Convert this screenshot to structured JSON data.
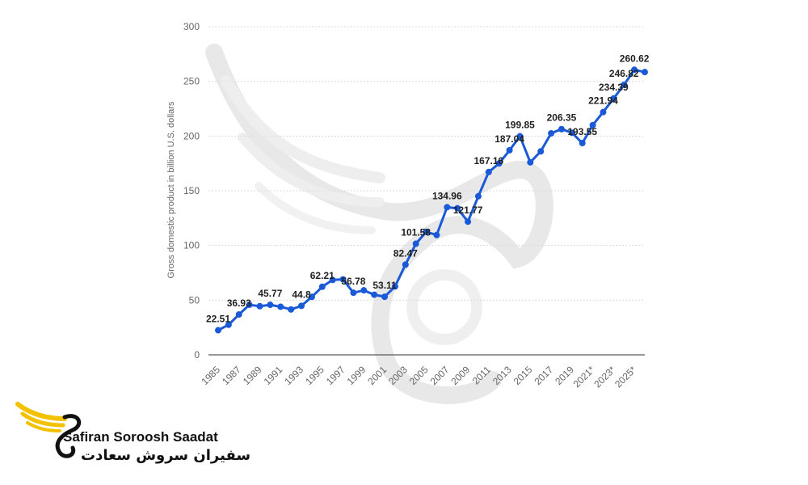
{
  "chart_data": {
    "type": "line",
    "ylabel": "Gross domestic product in billion U.S. dollars",
    "xlabel": "",
    "ylim": [
      0,
      300
    ],
    "yticks": [
      0,
      50,
      100,
      150,
      200,
      250,
      300
    ],
    "grid": true,
    "color": "#1a5ad8",
    "x_ticks": [
      "1985",
      "1987",
      "1989",
      "1991",
      "1993",
      "1995",
      "1997",
      "1999",
      "2001",
      "2003",
      "2005",
      "2007",
      "2009",
      "2011",
      "2013",
      "2015",
      "2017",
      "2019",
      "2021*",
      "2023*",
      "2025*"
    ],
    "x": [
      "1985",
      "1986",
      "1987",
      "1988",
      "1989",
      "1990",
      "1991",
      "1992",
      "1993",
      "1994",
      "1995",
      "1996",
      "1997",
      "1998",
      "1999",
      "2000",
      "2001",
      "2002",
      "2003",
      "2004",
      "2005",
      "2006",
      "2007",
      "2008",
      "2009",
      "2010",
      "2011",
      "2012",
      "2013",
      "2014",
      "2015",
      "2016",
      "2017",
      "2018",
      "2019",
      "2020",
      "2021*",
      "2022*",
      "2023*",
      "2024*",
      "2025*",
      "2026*"
    ],
    "series": [
      {
        "values": [
          22.51,
          27.5,
          36.93,
          45.77,
          44.5,
          45.77,
          44.0,
          41.5,
          44.8,
          53.0,
          62.21,
          68.5,
          69.0,
          56.78,
          59.0,
          55.0,
          53.11,
          62.5,
          82.47,
          101.58,
          112.5,
          109.5,
          134.96,
          134.0,
          121.77,
          145.0,
          167.16,
          175.0,
          187.04,
          199.85,
          176.0,
          186.0,
          202.5,
          206.35,
          203.0,
          193.55,
          210.0,
          221.94,
          234.39,
          246.82,
          260.62,
          258.5
        ]
      }
    ],
    "data_labels": [
      {
        "x": "1985",
        "text": "22.51"
      },
      {
        "x": "1987",
        "text": "36.93"
      },
      {
        "x": "1990",
        "text": "45.77"
      },
      {
        "x": "1993",
        "text": "44.8"
      },
      {
        "x": "1995",
        "text": "62.21"
      },
      {
        "x": "1998",
        "text": "56.78"
      },
      {
        "x": "2001",
        "text": "53.11"
      },
      {
        "x": "2003",
        "text": "82.47"
      },
      {
        "x": "2004",
        "text": "101.58"
      },
      {
        "x": "2007",
        "text": "134.96"
      },
      {
        "x": "2009",
        "text": "121.77"
      },
      {
        "x": "2011",
        "text": "167.16"
      },
      {
        "x": "2013",
        "text": "187.04"
      },
      {
        "x": "2014",
        "text": "199.85"
      },
      {
        "x": "2018",
        "text": "206.35"
      },
      {
        "x": "2020",
        "text": "193.55"
      },
      {
        "x": "2022*",
        "text": "221.94"
      },
      {
        "x": "2023*",
        "text": "234.39"
      },
      {
        "x": "2024*",
        "text": "246.82"
      },
      {
        "x": "2025*",
        "text": "260.62"
      }
    ]
  },
  "logo": {
    "name_en": "Safiran Soroosh Saadat",
    "name_fa": "سفیران سروش سعادت",
    "accent": "#f2c200"
  }
}
